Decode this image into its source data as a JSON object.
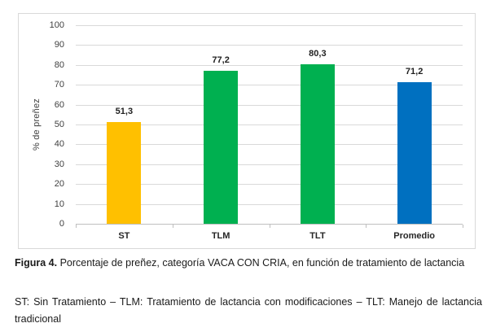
{
  "chart_data": {
    "type": "bar",
    "categories": [
      "ST",
      "TLM",
      "TLT",
      "Promedio"
    ],
    "values": [
      51.3,
      77.2,
      80.3,
      71.2
    ],
    "value_labels": [
      "51,3",
      "77,2",
      "80,3",
      "71,2"
    ],
    "bar_colors": [
      "#FFC000",
      "#00B050",
      "#00B050",
      "#0070C0"
    ],
    "title": "",
    "xlabel": "",
    "ylabel": "% de preñez",
    "ylim": [
      0,
      100
    ],
    "yticks": [
      0,
      10,
      20,
      30,
      40,
      50,
      60,
      70,
      80,
      90,
      100
    ],
    "grid": true,
    "legend_position": "none"
  },
  "colors": {
    "gridline": "#d9d9d9",
    "axis_line": "#bfbfbf",
    "tick_label": "#404040",
    "frame_border": "#d9d9d9",
    "background": "#ffffff"
  },
  "caption": {
    "figure_label": "Figura 4.",
    "figure_text": "Porcentaje de preñez, categoría VACA CON CRIA, en función de tratamiento de lactancia",
    "legend_text": "ST: Sin Tratamiento – TLM: Tratamiento de lactancia con modificaciones – TLT: Manejo de lactancia tradicional"
  }
}
